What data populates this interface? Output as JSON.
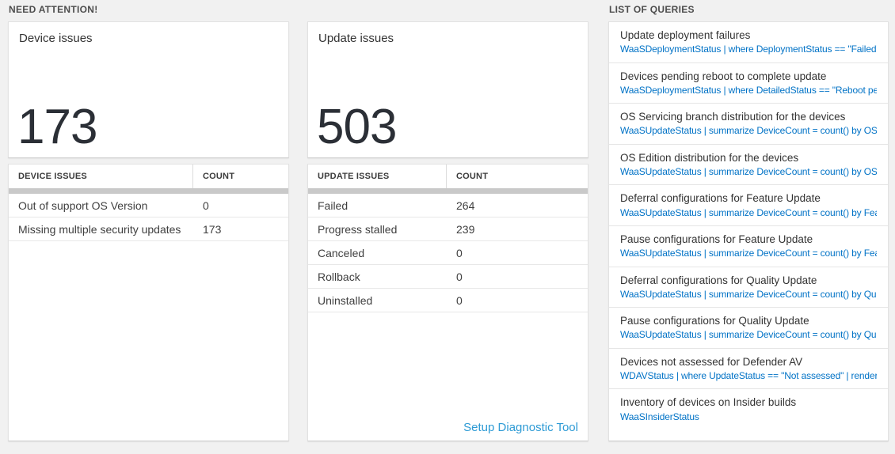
{
  "sections": {
    "need_attention": {
      "title": "NEED ATTENTION!"
    },
    "queries": {
      "title": "LIST OF QUERIES"
    }
  },
  "tiles": [
    {
      "title": "Device issues",
      "value": "173",
      "table": {
        "headers": [
          "DEVICE ISSUES",
          "COUNT"
        ],
        "rows": [
          {
            "label": "Out of support OS Version",
            "count": "0"
          },
          {
            "label": "Missing multiple security updates",
            "count": "173"
          }
        ]
      }
    },
    {
      "title": "Update issues",
      "value": "503",
      "table": {
        "headers": [
          "UPDATE ISSUES",
          "COUNT"
        ],
        "rows": [
          {
            "label": "Failed",
            "count": "264"
          },
          {
            "label": "Progress stalled",
            "count": "239"
          },
          {
            "label": "Canceled",
            "count": "0"
          },
          {
            "label": "Rollback",
            "count": "0"
          },
          {
            "label": "Uninstalled",
            "count": "0"
          }
        ]
      },
      "link": "Setup Diagnostic Tool"
    }
  ],
  "queries": [
    {
      "title": "Update deployment failures",
      "query": "WaaSDeploymentStatus | where DeploymentStatus == \"Failed\" |..."
    },
    {
      "title": "Devices pending reboot to complete update",
      "query": "WaaSDeploymentStatus | where DetailedStatus == \"Reboot pend..."
    },
    {
      "title": "OS Servicing branch distribution for the devices",
      "query": "WaaSUpdateStatus | summarize DeviceCount = count() by OSSer..."
    },
    {
      "title": "OS Edition distribution for the devices",
      "query": "WaaSUpdateStatus | summarize DeviceCount = count() by OSEdit..."
    },
    {
      "title": "Deferral configurations for Feature Update",
      "query": "WaaSUpdateStatus | summarize DeviceCount = count() by Featur..."
    },
    {
      "title": "Pause configurations for Feature Update",
      "query": "WaaSUpdateStatus | summarize DeviceCount = count() by Featur..."
    },
    {
      "title": "Deferral configurations for Quality Update",
      "query": "WaaSUpdateStatus | summarize DeviceCount = count() by Qualit..."
    },
    {
      "title": "Pause configurations for Quality Update",
      "query": "WaaSUpdateStatus | summarize DeviceCount = count() by Qualit..."
    },
    {
      "title": "Devices not assessed for Defender AV",
      "query": "WDAVStatus | where UpdateStatus == \"Not assessed\" | render ta..."
    },
    {
      "title": "Inventory of devices on Insider builds",
      "query": "WaaSInsiderStatus"
    }
  ],
  "colors": {
    "query_link_blue": "#0072c6",
    "setup_link_blue": "#2e9bd5",
    "number_text": "#2b2f36",
    "page_background": "#f1f1f1"
  }
}
